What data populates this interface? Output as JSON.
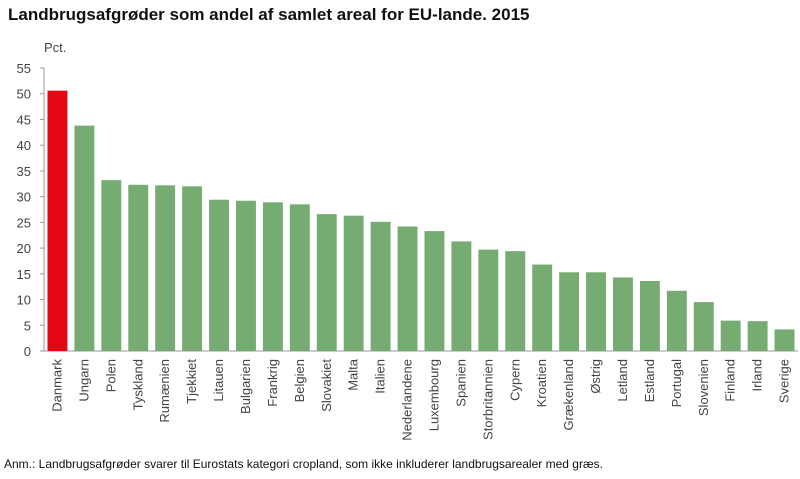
{
  "title": "Landbrugsafgrøder som andel af samlet areal for EU-lande. 2015",
  "note": "Anm.: Landbrugsafgrøder svarer til Eurostats kategori cropland, som ikke inkluderer landbrugsarealer med græs.",
  "colors": {
    "highlight": "#e30613",
    "bar": "#76ab72",
    "axis": "#9a9a9a"
  },
  "chart_data": {
    "type": "bar",
    "unit_label": "Pct.",
    "categories": [
      "Danmark",
      "Ungarn",
      "Polen",
      "Tyskland",
      "Rumænien",
      "Tjekkiet",
      "Litauen",
      "Bulgarien",
      "Frankrig",
      "Belgien",
      "Slovakiet",
      "Malta",
      "Italien",
      "Nederlandene",
      "Luxembourg",
      "Spanien",
      "Storbritannien",
      "Cypern",
      "Kroatien",
      "Grækenland",
      "Østrig",
      "Letland",
      "Estland",
      "Portugal",
      "Slovenien",
      "Finland",
      "Irland",
      "Sverige"
    ],
    "values": [
      50.6,
      43.8,
      33.2,
      32.3,
      32.2,
      32.0,
      29.4,
      29.2,
      28.9,
      28.5,
      26.6,
      26.3,
      25.1,
      24.2,
      23.3,
      21.3,
      19.7,
      19.4,
      16.8,
      15.3,
      15.3,
      14.3,
      13.6,
      11.7,
      9.5,
      5.9,
      5.8,
      4.2
    ],
    "highlight_index": 0,
    "ylim": [
      0,
      55
    ],
    "yticks": [
      0,
      5,
      10,
      15,
      20,
      25,
      30,
      35,
      40,
      45,
      50,
      55
    ],
    "grid": false
  }
}
